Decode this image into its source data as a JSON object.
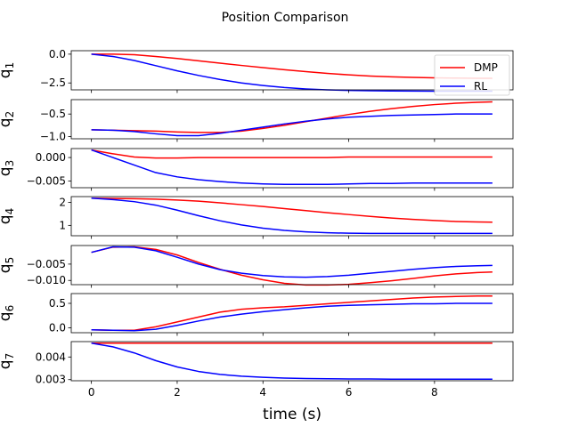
{
  "figure": {
    "title": "Position Comparison",
    "xlabel": "time (s)"
  },
  "chart_data": {
    "type": "line",
    "title": "Position Comparison",
    "xlabel": "time (s)",
    "xlim": [
      -0.47,
      9.83
    ],
    "x_ticks": [
      0,
      2,
      4,
      6,
      8
    ],
    "legend": {
      "location": "top-right",
      "entries": [
        "DMP",
        "RL"
      ]
    },
    "colors": {
      "DMP": "#ff0000",
      "RL": "#0000ff"
    },
    "x": [
      0,
      0.5,
      1,
      1.5,
      2,
      2.5,
      3,
      3.5,
      4,
      4.5,
      5,
      5.5,
      6,
      6.5,
      7,
      7.5,
      8,
      8.5,
      9,
      9.35
    ],
    "subplots": [
      {
        "ylabel": "q_1",
        "ylim": [
          -3.1,
          0.3
        ],
        "y_ticks": [
          0.0,
          -2.5
        ],
        "y_tick_labels": [
          "0.0",
          "−2.5"
        ],
        "series": [
          {
            "name": "DMP",
            "values": [
              0.0,
              0.0,
              -0.05,
              -0.2,
              -0.38,
              -0.58,
              -0.78,
              -0.98,
              -1.17,
              -1.35,
              -1.52,
              -1.67,
              -1.8,
              -1.9,
              -1.97,
              -2.02,
              -2.06,
              -2.08,
              -2.1,
              -2.1
            ]
          },
          {
            "name": "RL",
            "values": [
              0.0,
              -0.2,
              -0.55,
              -1.0,
              -1.45,
              -1.85,
              -2.2,
              -2.5,
              -2.72,
              -2.9,
              -3.02,
              -3.1,
              -3.15,
              -3.18,
              -3.2,
              -3.21,
              -3.22,
              -3.22,
              -3.22,
              -3.22
            ]
          }
        ]
      },
      {
        "ylabel": "q_2",
        "ylim": [
          -1.05,
          -0.18
        ],
        "y_ticks": [
          -0.5,
          -1.0
        ],
        "y_tick_labels": [
          "−0.5",
          "−1.0"
        ],
        "series": [
          {
            "name": "DMP",
            "values": [
              -0.85,
              -0.86,
              -0.87,
              -0.88,
              -0.9,
              -0.91,
              -0.91,
              -0.88,
              -0.82,
              -0.75,
              -0.67,
              -0.59,
              -0.51,
              -0.44,
              -0.38,
              -0.33,
              -0.29,
              -0.26,
              -0.24,
              -0.23
            ]
          },
          {
            "name": "RL",
            "values": [
              -0.85,
              -0.86,
              -0.89,
              -0.94,
              -0.98,
              -0.98,
              -0.93,
              -0.86,
              -0.79,
              -0.72,
              -0.66,
              -0.61,
              -0.57,
              -0.55,
              -0.53,
              -0.52,
              -0.51,
              -0.5,
              -0.5,
              -0.5
            ]
          }
        ]
      },
      {
        "ylabel": "q_3",
        "ylim": [
          -0.0064,
          0.0019
        ],
        "y_ticks": [
          0.0,
          -0.005
        ],
        "y_tick_labels": [
          "0.000",
          "−0.005"
        ],
        "series": [
          {
            "name": "DMP",
            "values": [
              0.0016,
              0.0008,
              0.0001,
              -0.0001,
              -0.0001,
              0.0,
              0.0,
              0.0,
              0.0,
              0.0,
              0.0,
              0.0,
              0.0001,
              0.0001,
              0.0001,
              0.0001,
              0.0001,
              0.0001,
              0.0001,
              0.0001
            ]
          },
          {
            "name": "RL",
            "values": [
              0.0016,
              0.0,
              -0.0016,
              -0.0032,
              -0.0041,
              -0.0047,
              -0.0051,
              -0.0054,
              -0.0056,
              -0.0057,
              -0.0057,
              -0.0057,
              -0.0056,
              -0.0055,
              -0.0055,
              -0.0054,
              -0.0054,
              -0.0054,
              -0.0054,
              -0.0054
            ]
          }
        ]
      },
      {
        "ylabel": "q_4",
        "ylim": [
          0.55,
          2.25
        ],
        "y_ticks": [
          2,
          1
        ],
        "y_tick_labels": [
          "2",
          "1"
        ],
        "series": [
          {
            "name": "DMP",
            "values": [
              2.18,
              2.17,
              2.16,
              2.14,
              2.1,
              2.05,
              1.98,
              1.9,
              1.82,
              1.73,
              1.64,
              1.55,
              1.47,
              1.39,
              1.32,
              1.26,
              1.21,
              1.17,
              1.15,
              1.14
            ]
          },
          {
            "name": "RL",
            "values": [
              2.18,
              2.12,
              2.03,
              1.88,
              1.66,
              1.42,
              1.2,
              1.02,
              0.88,
              0.78,
              0.72,
              0.68,
              0.66,
              0.65,
              0.65,
              0.65,
              0.65,
              0.65,
              0.65,
              0.65
            ]
          }
        ]
      },
      {
        "ylabel": "q_5",
        "ylim": [
          -0.0113,
          0.0007
        ],
        "y_ticks": [
          -0.005,
          -0.01
        ],
        "y_tick_labels": [
          "−0.005",
          "−0.010"
        ],
        "series": [
          {
            "name": "DMP",
            "values": [
              -0.0014,
              0.0002,
              0.0003,
              -0.0005,
              -0.0022,
              -0.0045,
              -0.0066,
              -0.0084,
              -0.0098,
              -0.0109,
              -0.0114,
              -0.0114,
              -0.0112,
              -0.0107,
              -0.0101,
              -0.0094,
              -0.0086,
              -0.008,
              -0.0076,
              -0.0074
            ]
          },
          {
            "name": "RL",
            "values": [
              -0.0014,
              0.0003,
              0.0002,
              -0.0009,
              -0.0029,
              -0.005,
              -0.0067,
              -0.0078,
              -0.0085,
              -0.0089,
              -0.009,
              -0.0088,
              -0.0084,
              -0.0078,
              -0.0072,
              -0.0066,
              -0.0061,
              -0.0057,
              -0.0055,
              -0.0054
            ]
          }
        ]
      },
      {
        "ylabel": "q_6",
        "ylim": [
          -0.1,
          0.7
        ],
        "y_ticks": [
          0.5,
          0.0
        ],
        "y_tick_labels": [
          "0.5",
          "0.0"
        ],
        "series": [
          {
            "name": "DMP",
            "values": [
              -0.04,
              -0.05,
              -0.05,
              0.02,
              0.12,
              0.22,
              0.32,
              0.38,
              0.41,
              0.43,
              0.46,
              0.49,
              0.52,
              0.55,
              0.58,
              0.61,
              0.63,
              0.64,
              0.65,
              0.65
            ]
          },
          {
            "name": "RL",
            "values": [
              -0.04,
              -0.05,
              -0.06,
              -0.03,
              0.05,
              0.14,
              0.22,
              0.28,
              0.33,
              0.37,
              0.41,
              0.44,
              0.46,
              0.47,
              0.48,
              0.49,
              0.49,
              0.5,
              0.5,
              0.5
            ]
          }
        ]
      },
      {
        "ylabel": "q_7",
        "ylim": [
          0.00295,
          0.00468
        ],
        "y_ticks": [
          0.004,
          0.003
        ],
        "y_tick_labels": [
          "0.004",
          "0.003"
        ],
        "series": [
          {
            "name": "DMP",
            "values": [
              0.00461,
              0.00461,
              0.00461,
              0.00461,
              0.00461,
              0.00461,
              0.00461,
              0.00461,
              0.00461,
              0.00461,
              0.00461,
              0.00461,
              0.00461,
              0.00461,
              0.00461,
              0.00461,
              0.00461,
              0.00461,
              0.00461,
              0.00461
            ]
          },
          {
            "name": "RL",
            "values": [
              0.00461,
              0.00445,
              0.00418,
              0.00384,
              0.00356,
              0.00336,
              0.00323,
              0.00315,
              0.0031,
              0.00307,
              0.00305,
              0.00304,
              0.00303,
              0.00303,
              0.00302,
              0.00302,
              0.00302,
              0.00302,
              0.00302,
              0.00302
            ]
          }
        ]
      }
    ]
  }
}
